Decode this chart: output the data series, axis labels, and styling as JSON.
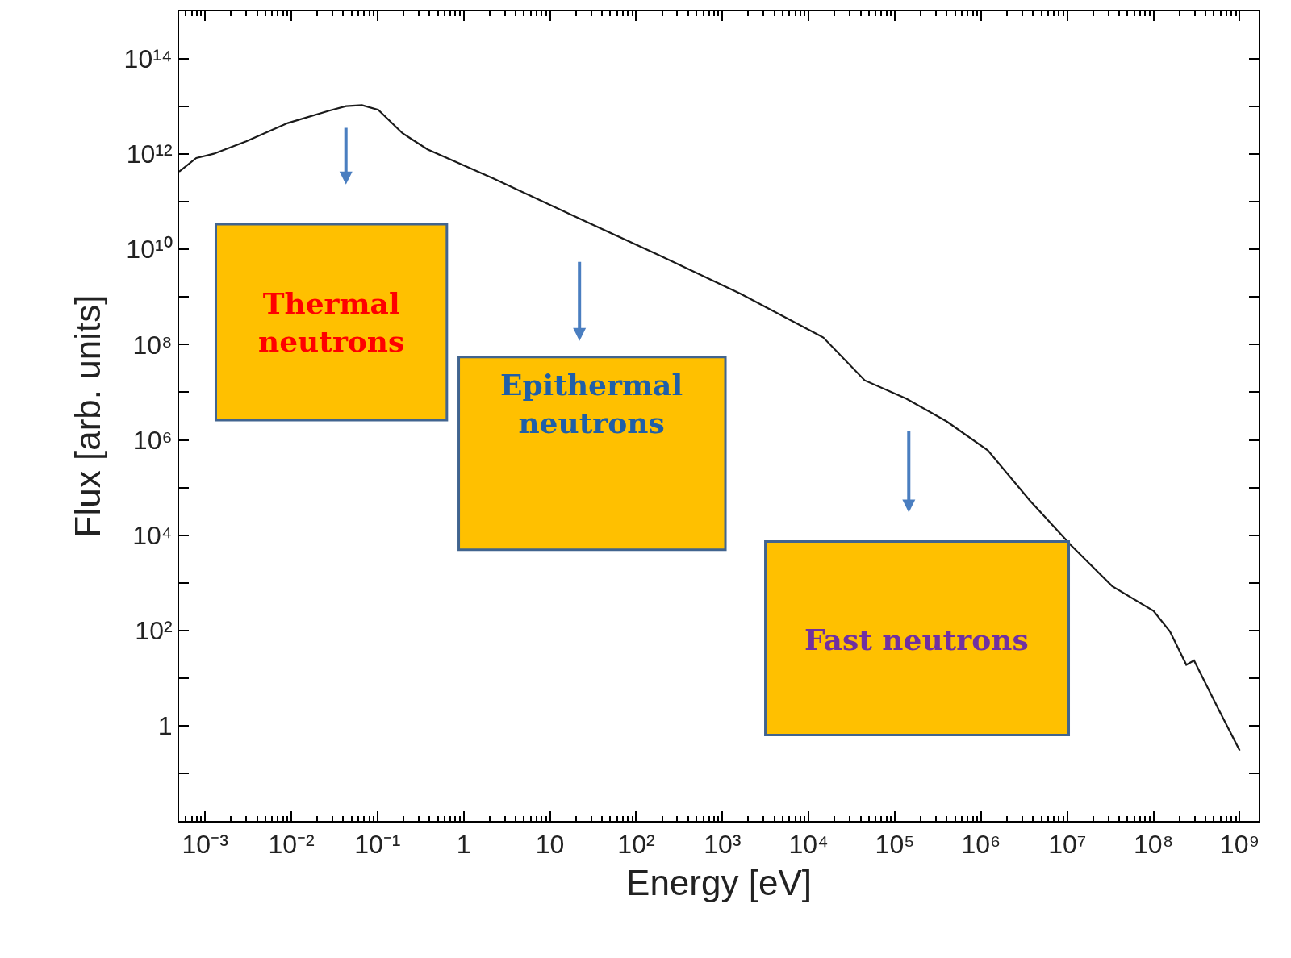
{
  "chart_data": {
    "type": "line",
    "xlabel": "Energy [eV]",
    "ylabel": "Flux [arb. units]",
    "log": "xy",
    "marker": "none",
    "line_style": "solid",
    "x": [
      0.0005,
      0.00079,
      0.00126,
      0.003,
      0.0091,
      0.027,
      0.043,
      0.066,
      0.102,
      0.195,
      0.38,
      2.2,
      20,
      182,
      1620,
      14800,
      44700,
      135000,
      398000,
      1200000,
      3630000,
      11000000,
      33100000,
      100000000,
      155000000,
      240000000,
      295000000,
      575000000,
      1000000000
    ],
    "series": [
      {
        "color": "#1a1a1a",
        "values": [
          430000000000.0,
          830000000000.0,
          1020000000000.0,
          1860000000000.0,
          4500000000000.0,
          8100000000000.0,
          10200000000000.0,
          10700000000000.0,
          8500000000000.0,
          2750000000000.0,
          1260000000000.0,
          310000000000.0,
          48000000000.0,
          7600000000.0,
          1170000000.0,
          141000000.0,
          17800000.0,
          7400000.0,
          2450000.0,
          600000.0,
          55000.0,
          6200.0,
          850,
          257,
          95,
          19,
          23.4,
          2.1,
          0.3
        ]
      }
    ],
    "xlim": [
      0.0005,
      1660000000
    ],
    "ylim": [
      0.01,
      1000000000000000.0
    ],
    "xticks": [
      {
        "value": 0.001,
        "label": "10⁻³"
      },
      {
        "value": 0.01,
        "label": "10⁻²"
      },
      {
        "value": 0.1,
        "label": "10⁻¹"
      },
      1,
      10,
      {
        "value": 100,
        "label": "10²"
      },
      {
        "value": 1000,
        "label": "10³"
      },
      {
        "value": 10000,
        "label": "10⁴"
      },
      {
        "value": 100000,
        "label": "10⁵"
      },
      {
        "value": 1000000,
        "label": "10⁶"
      },
      {
        "value": 10000000,
        "label": "10⁷"
      },
      {
        "value": 100000000,
        "label": "10⁸"
      },
      {
        "value": 1000000000,
        "label": "10⁹"
      }
    ],
    "yticks": [
      {
        "value": 0.1,
        "label": null
      },
      1,
      {
        "value": 10,
        "label": null
      },
      {
        "value": 100,
        "label": "10²"
      },
      {
        "value": 1000,
        "label": null
      },
      {
        "value": 10000,
        "label": "10⁴"
      },
      {
        "value": 100000,
        "label": null
      },
      {
        "value": 1000000,
        "label": "10⁶"
      },
      {
        "value": 10000000,
        "label": null
      },
      {
        "value": 100000000,
        "label": "10⁸"
      },
      {
        "value": 1000000000,
        "label": null
      },
      {
        "value": 10000000000,
        "label": "10¹⁰"
      },
      {
        "value": 100000000000,
        "label": null
      },
      {
        "value": 1000000000000,
        "label": "10¹²"
      },
      {
        "value": 10000000000000,
        "label": null
      },
      {
        "value": 100000000000000,
        "label": "10¹⁴"
      }
    ],
    "annotations": [
      "Thermal neutrons",
      "Epithermal neutrons",
      "Fast neutrons"
    ]
  }
}
